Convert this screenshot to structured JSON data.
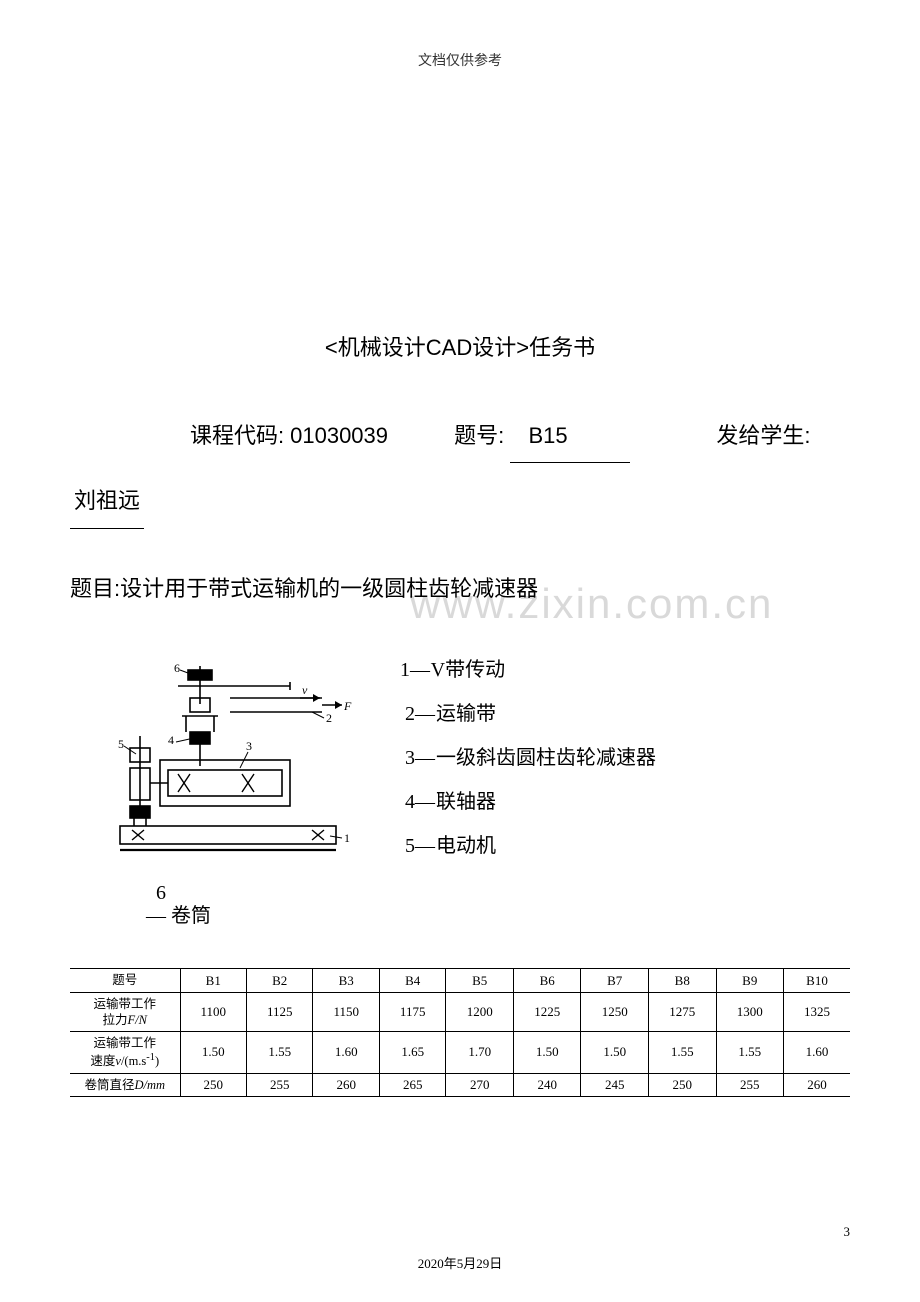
{
  "header_note": "文档仅供参考",
  "watermark": "www.zixin.com.cn",
  "title": "<机械设计CAD设计>任务书",
  "course": {
    "label": "课程代码:",
    "value": "01030039"
  },
  "topic_no": {
    "label": "题号:",
    "value": "B15"
  },
  "student": {
    "label": "发给学生:",
    "value": "刘祖远"
  },
  "topic": {
    "label": "题目:",
    "value": "设计用于带式运输机的一级圆柱齿轮减速器"
  },
  "legend": [
    {
      "num": "1—",
      "text": "V带传动"
    },
    {
      "num": "2—",
      "text": "运输带"
    },
    {
      "num": "3—",
      "text": "一级斜齿圆柱齿轮减速器"
    },
    {
      "num": "4—",
      "text": "联轴器"
    },
    {
      "num": "5—",
      "text": "电动机"
    },
    {
      "num": "6—",
      "text": "卷筒"
    }
  ],
  "diagram": {
    "stroke": "#000000",
    "stroke_width": 1.6,
    "label_font_size": 11
  },
  "table": {
    "bold_col_index": 2,
    "header": [
      "题号",
      "B1",
      "B2",
      "B3",
      "B4",
      "B5",
      "B6",
      "B7",
      "B8",
      "B9",
      "B10"
    ],
    "rows": [
      {
        "label_html": "运输带工作<br>拉力<span class='unit'>F/N</span>",
        "cells": [
          "1100",
          "1125",
          "1150",
          "1175",
          "1200",
          "1225",
          "1250",
          "1275",
          "1300",
          "1325"
        ]
      },
      {
        "label_html": "运输带工作<br>速度<span class='unit'>v</span>/(m.s<sup>-1</sup>)",
        "cells": [
          "1.50",
          "1.55",
          "1.60",
          "1.65",
          "1.70",
          "1.50",
          "1.50",
          "1.55",
          "1.55",
          "1.60"
        ]
      },
      {
        "label_html": "卷筒直径<span class='unit'>D/mm</span>",
        "cells": [
          "250",
          "255",
          "260",
          "265",
          "270",
          "240",
          "245",
          "250",
          "255",
          "260"
        ]
      }
    ]
  },
  "page_number": "3",
  "footer_date": "2020年5月29日"
}
